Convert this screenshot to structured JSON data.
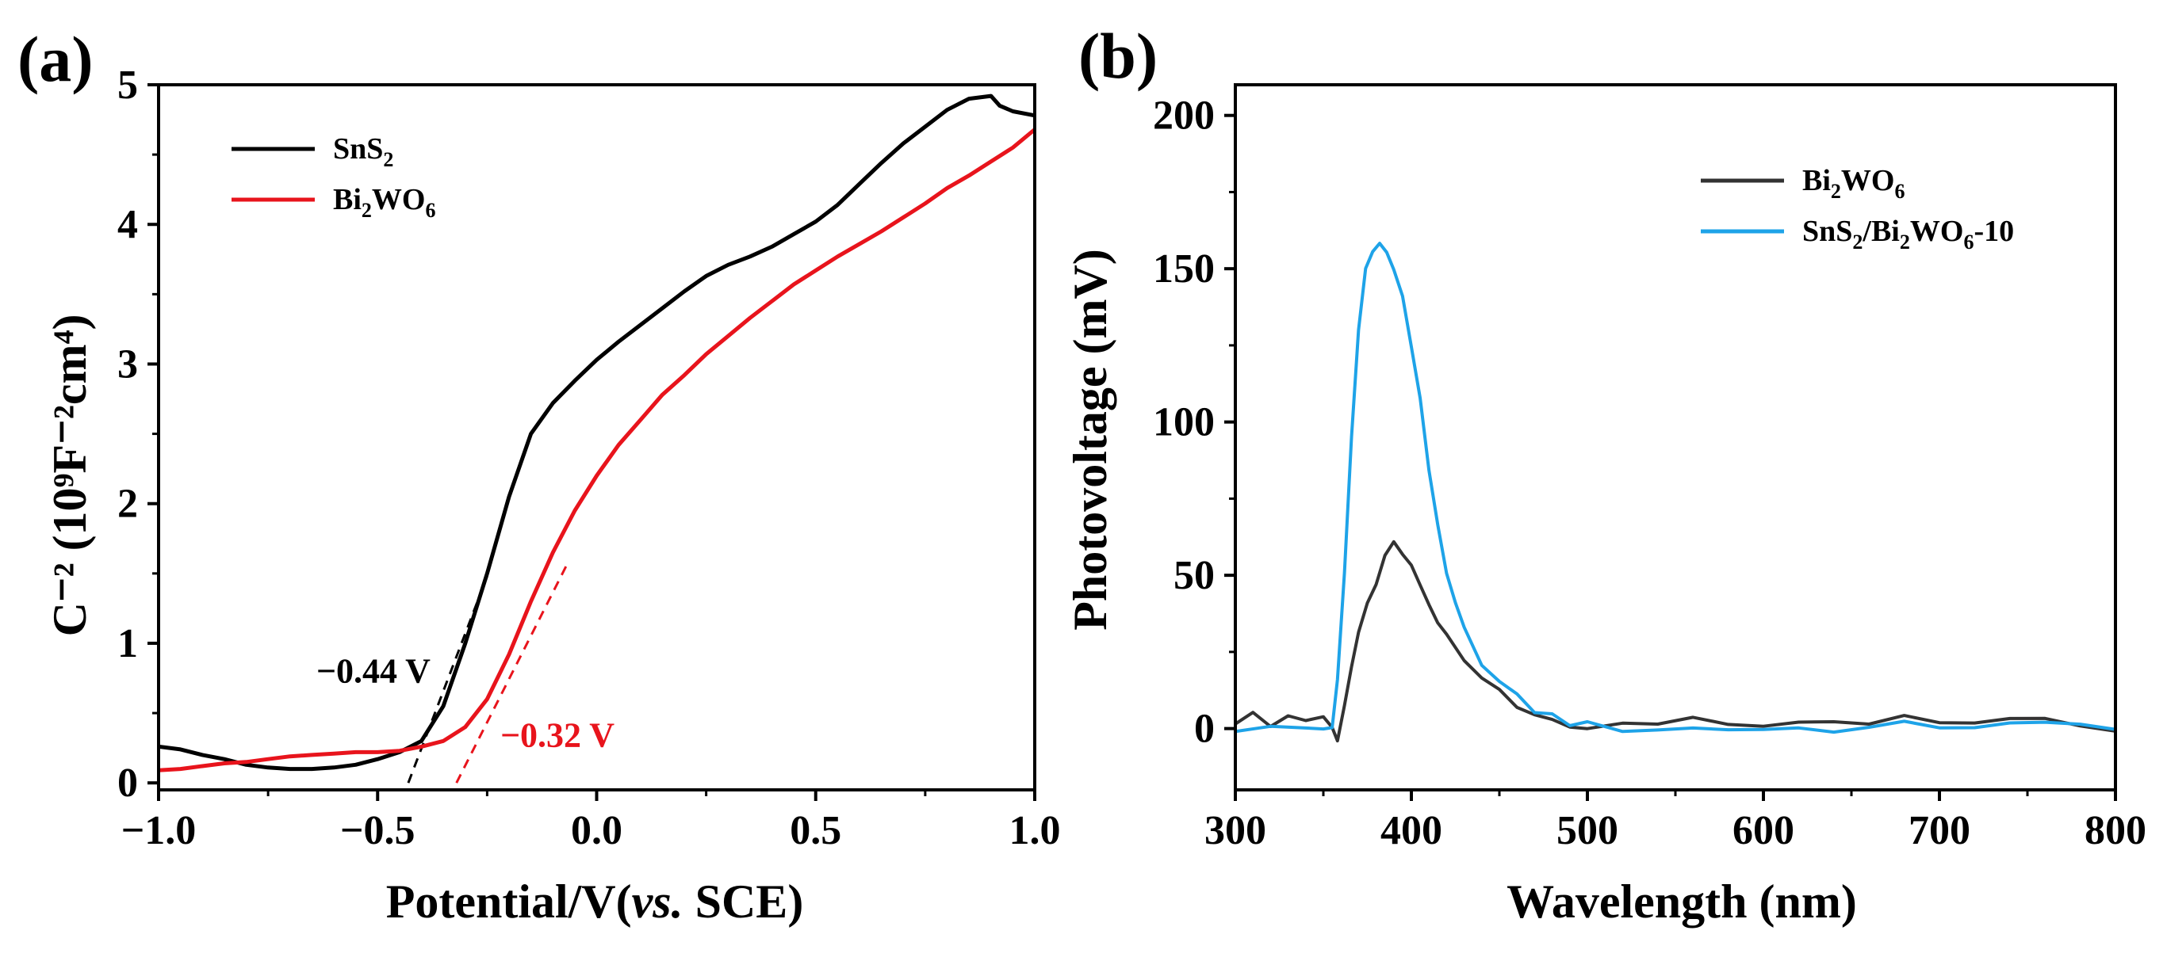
{
  "chart_data": [
    {
      "panel": "(a)",
      "type": "line",
      "xlabel": "Potential/V(vs. SCE)",
      "xlabel_parts": {
        "pre": "Potential/V(",
        "italic": "vs.",
        "post": " SCE)"
      },
      "ylabel": "C⁻² (10⁹F⁻²cm⁴)",
      "xlim": [
        -1.0,
        1.0
      ],
      "ylim": [
        -0.05,
        5.0
      ],
      "x_ticks": [
        "−1.0",
        "−0.5",
        "0.0",
        "0.5",
        "1.0"
      ],
      "x_tick_values": [
        -1.0,
        -0.5,
        0.0,
        0.5,
        1.0
      ],
      "y_ticks": [
        "0",
        "1",
        "2",
        "3",
        "4",
        "5"
      ],
      "y_tick_values": [
        0,
        1,
        2,
        3,
        4,
        5
      ],
      "legend_position": "top-left",
      "series": [
        {
          "name": "SnS₂",
          "label_main": "SnS",
          "label_sub": "2",
          "color": "#000000",
          "x": [
            -1.0,
            -0.95,
            -0.9,
            -0.85,
            -0.8,
            -0.75,
            -0.7,
            -0.65,
            -0.6,
            -0.55,
            -0.5,
            -0.45,
            -0.4,
            -0.35,
            -0.3,
            -0.25,
            -0.2,
            -0.15,
            -0.1,
            -0.05,
            0.0,
            0.05,
            0.1,
            0.15,
            0.2,
            0.25,
            0.3,
            0.35,
            0.4,
            0.45,
            0.5,
            0.55,
            0.6,
            0.65,
            0.7,
            0.75,
            0.8,
            0.85,
            0.9,
            0.92,
            0.95,
            1.0
          ],
          "y": [
            0.26,
            0.24,
            0.2,
            0.17,
            0.13,
            0.11,
            0.1,
            0.1,
            0.11,
            0.13,
            0.17,
            0.22,
            0.3,
            0.55,
            1.0,
            1.5,
            2.05,
            2.5,
            2.72,
            2.88,
            3.03,
            3.16,
            3.28,
            3.4,
            3.52,
            3.63,
            3.71,
            3.77,
            3.84,
            3.93,
            4.02,
            4.14,
            4.29,
            4.44,
            4.58,
            4.7,
            4.82,
            4.9,
            4.92,
            4.85,
            4.81,
            4.78
          ]
        },
        {
          "name": "Bi₂WO₆",
          "label_main": "Bi",
          "label_sub": "2",
          "label_main2": "WO",
          "label_sub2": "6",
          "color": "#e8141c",
          "x": [
            -1.0,
            -0.95,
            -0.9,
            -0.85,
            -0.8,
            -0.75,
            -0.7,
            -0.65,
            -0.6,
            -0.55,
            -0.5,
            -0.45,
            -0.4,
            -0.35,
            -0.3,
            -0.25,
            -0.2,
            -0.15,
            -0.1,
            -0.05,
            0.0,
            0.05,
            0.1,
            0.15,
            0.2,
            0.25,
            0.3,
            0.35,
            0.4,
            0.45,
            0.5,
            0.55,
            0.6,
            0.65,
            0.7,
            0.75,
            0.8,
            0.85,
            0.9,
            0.95,
            1.0
          ],
          "y": [
            0.09,
            0.1,
            0.12,
            0.14,
            0.15,
            0.17,
            0.19,
            0.2,
            0.21,
            0.22,
            0.22,
            0.23,
            0.26,
            0.3,
            0.4,
            0.6,
            0.92,
            1.3,
            1.65,
            1.95,
            2.2,
            2.42,
            2.6,
            2.78,
            2.92,
            3.07,
            3.2,
            3.33,
            3.45,
            3.57,
            3.67,
            3.77,
            3.86,
            3.95,
            4.05,
            4.15,
            4.26,
            4.35,
            4.45,
            4.55,
            4.68
          ]
        }
      ],
      "tangents": [
        {
          "color": "#000000",
          "x": [
            -0.43,
            -0.25
          ],
          "y": [
            0.0,
            1.48
          ]
        },
        {
          "color": "#e8141c",
          "x": [
            -0.32,
            -0.07
          ],
          "y": [
            0.0,
            1.55
          ]
        }
      ],
      "annotations": [
        {
          "text": "−0.44 V",
          "color": "#000000",
          "x": -0.64,
          "y": 0.72
        },
        {
          "text": "−0.32 V",
          "color": "#e8141c",
          "x": -0.22,
          "y": 0.26
        }
      ]
    },
    {
      "panel": "(b)",
      "type": "line",
      "xlabel": "Wavelength (nm)",
      "ylabel": "Photovoltage (mV)",
      "xlim": [
        300,
        800
      ],
      "ylim": [
        -20,
        210
      ],
      "x_ticks": [
        "300",
        "400",
        "500",
        "600",
        "700",
        "800"
      ],
      "x_tick_values": [
        300,
        400,
        500,
        600,
        700,
        800
      ],
      "y_ticks": [
        "0",
        "50",
        "100",
        "150",
        "200"
      ],
      "y_tick_values": [
        0,
        50,
        100,
        150,
        200
      ],
      "legend_position": "top-right",
      "series": [
        {
          "name": "Bi₂WO₆",
          "label_main": "Bi",
          "label_sub": "2",
          "label_main2": "WO",
          "label_sub2": "6",
          "color": "#333333",
          "x": [
            300,
            310,
            320,
            330,
            340,
            350,
            355,
            358,
            362,
            366,
            370,
            375,
            380,
            385,
            390,
            395,
            400,
            405,
            410,
            415,
            420,
            430,
            440,
            450,
            460,
            470,
            480,
            490,
            500,
            520,
            540,
            560,
            580,
            600,
            620,
            640,
            660,
            680,
            700,
            720,
            740,
            760,
            780,
            800
          ],
          "y": [
            3,
            4,
            2,
            4,
            3,
            4,
            0,
            -3,
            8,
            20,
            30,
            40,
            48,
            55,
            60,
            57,
            52,
            47,
            40,
            35,
            30,
            22,
            16,
            13,
            8,
            5,
            3,
            2,
            1,
            2,
            0,
            3,
            2,
            1,
            3,
            2,
            0,
            3,
            2,
            1,
            3,
            2,
            1,
            0
          ]
        },
        {
          "name": "SnS₂/Bi₂WO₆-10",
          "label_main": "SnS",
          "label_sub": "2",
          "label_main2": "/Bi",
          "label_sub2": "2",
          "label_main3": "WO",
          "label_sub3": "6",
          "label_tail": "-10",
          "color": "#1ea3e8",
          "x": [
            300,
            320,
            340,
            350,
            355,
            358,
            362,
            366,
            370,
            374,
            378,
            382,
            386,
            390,
            395,
            400,
            405,
            410,
            415,
            420,
            425,
            430,
            440,
            450,
            460,
            470,
            480,
            490,
            500,
            520,
            540,
            560,
            580,
            600,
            620,
            640,
            660,
            680,
            700,
            720,
            740,
            760,
            780,
            800
          ],
          "y": [
            0,
            0,
            0,
            0,
            1,
            15,
            50,
            95,
            130,
            150,
            157,
            158,
            155,
            150,
            140,
            125,
            108,
            85,
            65,
            50,
            40,
            32,
            22,
            15,
            10,
            6,
            4,
            2,
            1,
            0,
            0,
            0,
            0,
            0,
            0,
            0,
            0,
            1,
            1,
            1,
            1,
            1,
            1,
            1
          ]
        }
      ]
    }
  ]
}
